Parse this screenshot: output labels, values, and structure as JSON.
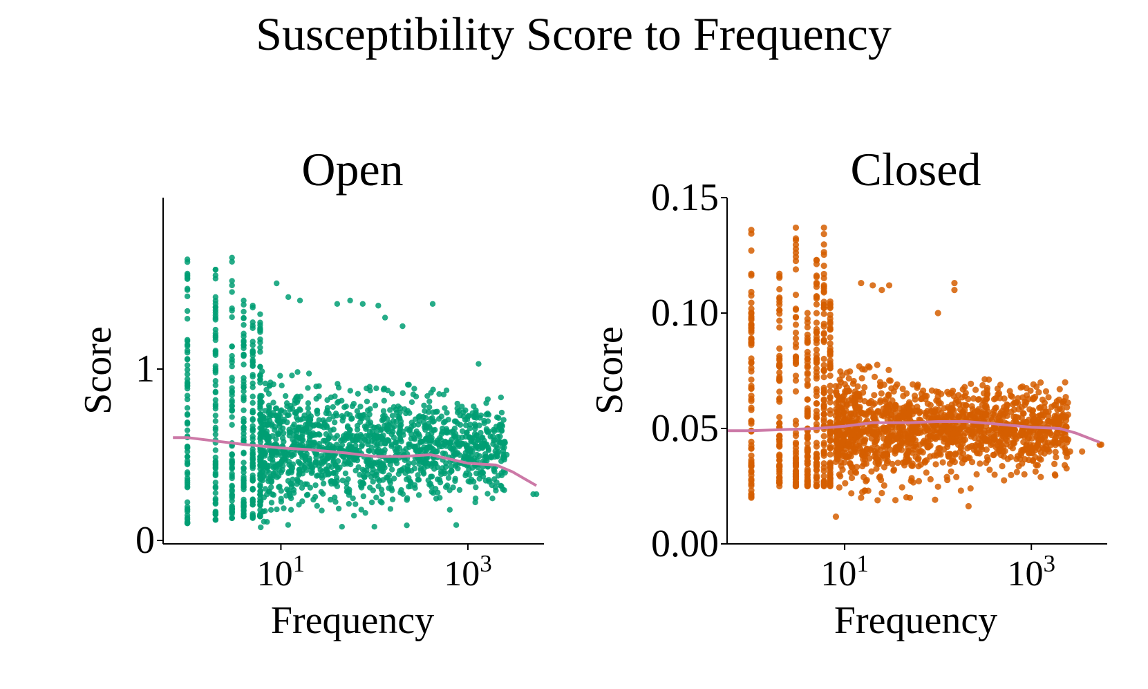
{
  "figure": {
    "suptitle": "Susceptibility Score to Frequency"
  },
  "chart_data": [
    {
      "type": "scatter",
      "title": "Open",
      "xlabel": "Frequency",
      "ylabel": "Score",
      "xscale": "log",
      "xlim": [
        0.55,
        6500
      ],
      "ylim": [
        -0.02,
        2.0
      ],
      "xticks": [
        {
          "value": 10,
          "base": "10",
          "exp": "1"
        },
        {
          "value": 1000,
          "base": "10",
          "exp": "3"
        }
      ],
      "yticks": [
        {
          "value": 0,
          "label": "0"
        },
        {
          "value": 1,
          "label": "1"
        }
      ],
      "point_color": "#009e73",
      "trend_color": "#cc79a7",
      "discrete_x": [
        1,
        2,
        3,
        4,
        5,
        6
      ],
      "column_ranges": [
        [
          0.1,
          1.64
        ],
        [
          0.12,
          1.58
        ],
        [
          0.13,
          1.65
        ],
        [
          0.14,
          1.4
        ],
        [
          0.13,
          1.37
        ],
        [
          0.14,
          1.32
        ]
      ],
      "cloud": {
        "xmin": 6,
        "xmax": 2500,
        "center": 0.55,
        "spread": 0.3,
        "count": 1400
      },
      "outliers": [
        {
          "x": 9,
          "y": 1.5
        },
        {
          "x": 12,
          "y": 1.42
        },
        {
          "x": 16,
          "y": 1.4
        },
        {
          "x": 40,
          "y": 1.38
        },
        {
          "x": 55,
          "y": 1.4
        },
        {
          "x": 75,
          "y": 1.38
        },
        {
          "x": 110,
          "y": 1.37
        },
        {
          "x": 130,
          "y": 1.3
        },
        {
          "x": 200,
          "y": 1.25
        },
        {
          "x": 420,
          "y": 1.38
        },
        {
          "x": 1300,
          "y": 1.03
        },
        {
          "x": 750,
          "y": 0.09
        },
        {
          "x": 45,
          "y": 0.08
        },
        {
          "x": 100,
          "y": 0.08
        },
        {
          "x": 2000,
          "y": 0.55
        },
        {
          "x": 2300,
          "y": 0.38
        },
        {
          "x": 2600,
          "y": 0.5
        },
        {
          "x": 5000,
          "y": 0.27
        },
        {
          "x": 5400,
          "y": 0.27
        }
      ],
      "trend": [
        {
          "x": 0.7,
          "y": 0.6
        },
        {
          "x": 1,
          "y": 0.6
        },
        {
          "x": 2,
          "y": 0.58
        },
        {
          "x": 4,
          "y": 0.56
        },
        {
          "x": 10,
          "y": 0.54
        },
        {
          "x": 20,
          "y": 0.53
        },
        {
          "x": 50,
          "y": 0.51
        },
        {
          "x": 100,
          "y": 0.49
        },
        {
          "x": 200,
          "y": 0.49
        },
        {
          "x": 400,
          "y": 0.5
        },
        {
          "x": 700,
          "y": 0.47
        },
        {
          "x": 1000,
          "y": 0.45
        },
        {
          "x": 2000,
          "y": 0.44
        },
        {
          "x": 3000,
          "y": 0.4
        },
        {
          "x": 5400,
          "y": 0.32
        }
      ]
    },
    {
      "type": "scatter",
      "title": "Closed",
      "xlabel": "Frequency",
      "ylabel": "Score",
      "xscale": "log",
      "xlim": [
        0.55,
        6500
      ],
      "ylim": [
        0.0,
        0.15
      ],
      "xticks": [
        {
          "value": 10,
          "base": "10",
          "exp": "1"
        },
        {
          "value": 1000,
          "base": "10",
          "exp": "3"
        }
      ],
      "yticks": [
        {
          "value": 0.0,
          "label": "0.00"
        },
        {
          "value": 0.05,
          "label": "0.05"
        },
        {
          "value": 0.1,
          "label": "0.10"
        },
        {
          "value": 0.15,
          "label": "0.15"
        }
      ],
      "point_color": "#d55e00",
      "trend_color": "#cc79a7",
      "discrete_x": [
        1,
        2,
        3,
        4,
        5,
        6,
        7
      ],
      "column_ranges": [
        [
          0.02,
          0.136
        ],
        [
          0.025,
          0.117
        ],
        [
          0.025,
          0.137
        ],
        [
          0.025,
          0.1
        ],
        [
          0.025,
          0.123
        ],
        [
          0.025,
          0.137
        ],
        [
          0.025,
          0.105
        ]
      ],
      "cloud": {
        "xmin": 8,
        "xmax": 2500,
        "center": 0.05,
        "spread": 0.019,
        "count": 1400
      },
      "outliers": [
        {
          "x": 15,
          "y": 0.113
        },
        {
          "x": 20,
          "y": 0.112
        },
        {
          "x": 25,
          "y": 0.11
        },
        {
          "x": 30,
          "y": 0.112
        },
        {
          "x": 150,
          "y": 0.113
        },
        {
          "x": 150,
          "y": 0.11
        },
        {
          "x": 100,
          "y": 0.1
        },
        {
          "x": 15,
          "y": 0.02
        },
        {
          "x": 25,
          "y": 0.022
        },
        {
          "x": 2300,
          "y": 0.07
        },
        {
          "x": 2600,
          "y": 0.04
        },
        {
          "x": 3500,
          "y": 0.04
        },
        {
          "x": 5400,
          "y": 0.043
        },
        {
          "x": 5600,
          "y": 0.043
        }
      ],
      "trend": [
        {
          "x": 0.55,
          "y": 0.049
        },
        {
          "x": 1,
          "y": 0.049
        },
        {
          "x": 5,
          "y": 0.05
        },
        {
          "x": 10,
          "y": 0.051
        },
        {
          "x": 20,
          "y": 0.0525
        },
        {
          "x": 50,
          "y": 0.0525
        },
        {
          "x": 100,
          "y": 0.053
        },
        {
          "x": 200,
          "y": 0.053
        },
        {
          "x": 400,
          "y": 0.052
        },
        {
          "x": 1000,
          "y": 0.0505
        },
        {
          "x": 2000,
          "y": 0.05
        },
        {
          "x": 3000,
          "y": 0.048
        },
        {
          "x": 5400,
          "y": 0.044
        }
      ]
    }
  ]
}
